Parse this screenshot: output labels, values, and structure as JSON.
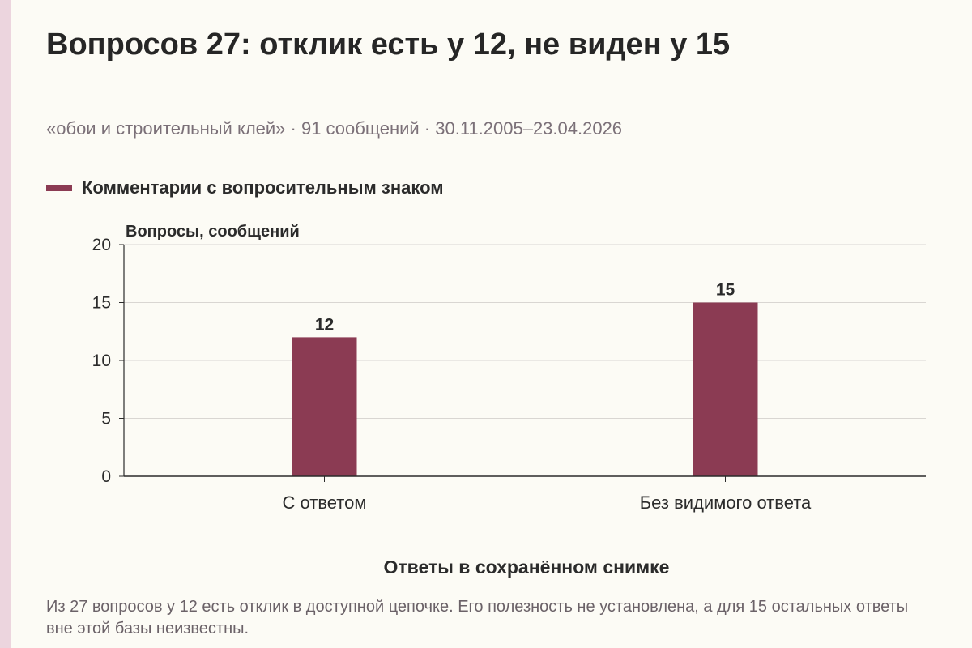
{
  "title": "Вопросов 27: отклик есть у 12, не виден у 15",
  "subtitle": "«обои и строительный клей» · 91 сообщений · 30.11.2005–23.04.2026",
  "note": "Из 27 вопросов у 12 есть отклик в доступной цепочке. Его полезность не установлена, а для 15 остальных ответы вне этой базы неизвестны.",
  "colors": {
    "bar": "#8b3b53",
    "grid": "#d9d6d2",
    "axis": "#2b2b2b",
    "accent": "#ecd5de"
  },
  "chart_data": {
    "type": "bar",
    "title": "",
    "legend": "Комментарии с вопросительным знаком",
    "legend_position": "top-left",
    "ylabel": "Вопросы, сообщений",
    "xlabel": "Ответы в сохранённом снимке",
    "categories": [
      "С ответом",
      "Без видимого ответа"
    ],
    "series": [
      {
        "name": "Комментарии с вопросительным знаком",
        "values": [
          12,
          15
        ]
      }
    ],
    "ylim": [
      0,
      20
    ],
    "yticks": [
      0,
      5,
      10,
      15,
      20
    ],
    "grid": true,
    "data_labels": true
  }
}
